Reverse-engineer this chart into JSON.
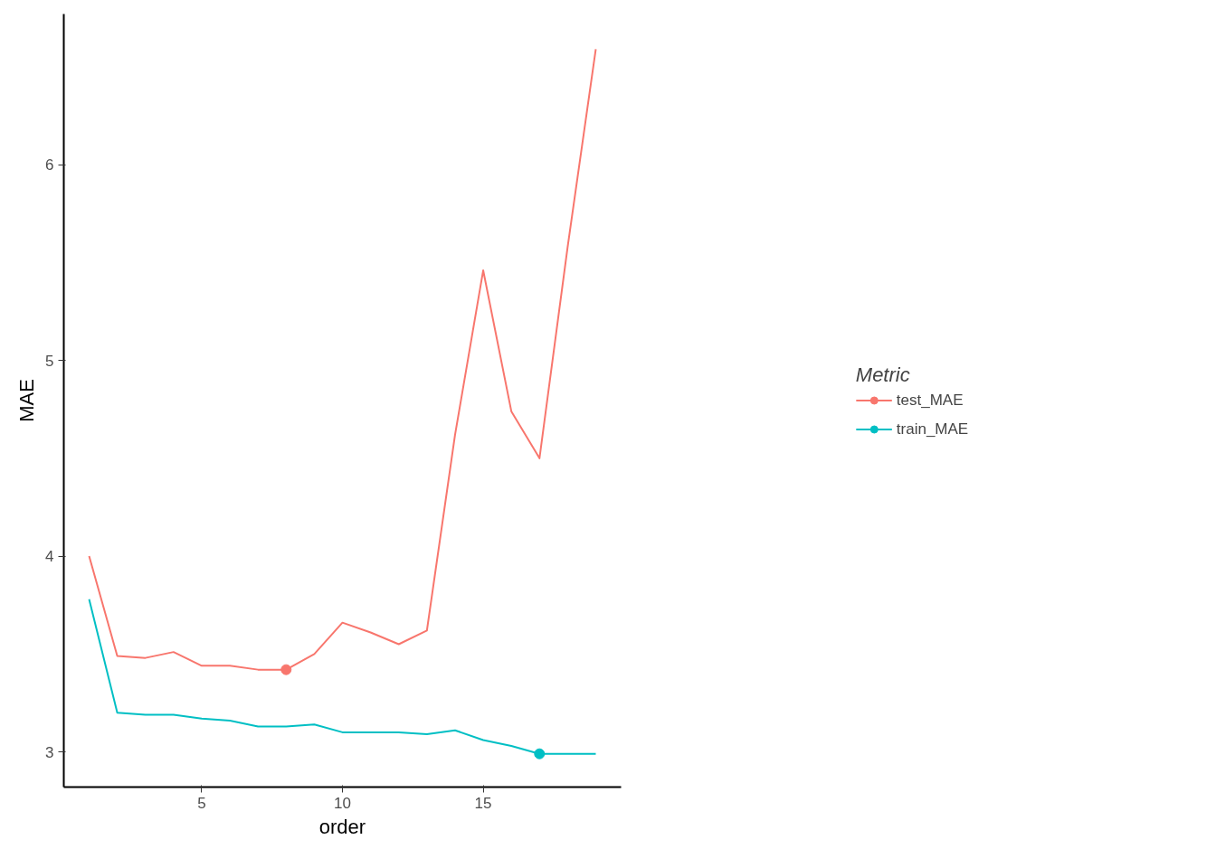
{
  "chart_data": {
    "type": "line",
    "xlabel": "order",
    "ylabel": "MAE",
    "legend_title": "Metric",
    "legend": "right",
    "grid": false,
    "x": [
      1,
      2,
      3,
      4,
      5,
      6,
      7,
      8,
      9,
      10,
      11,
      12,
      13,
      14,
      15,
      16,
      17,
      18,
      19
    ],
    "xlim": [
      0.1,
      19.9
    ],
    "xticks": [
      5,
      10,
      15
    ],
    "ylim": [
      2.82,
      6.77
    ],
    "yticks": [
      3,
      4,
      5,
      6
    ],
    "series": [
      {
        "name": "test_MAE",
        "color": "#f8766d",
        "values": [
          4.0,
          3.49,
          3.48,
          3.51,
          3.44,
          3.44,
          3.42,
          3.42,
          3.5,
          3.66,
          3.61,
          3.55,
          3.62,
          4.62,
          5.46,
          4.74,
          4.5,
          5.58,
          6.59
        ]
      },
      {
        "name": "train_MAE",
        "color": "#00bfc4",
        "values": [
          3.78,
          3.2,
          3.19,
          3.19,
          3.17,
          3.16,
          3.13,
          3.13,
          3.14,
          3.1,
          3.1,
          3.1,
          3.09,
          3.11,
          3.06,
          3.03,
          2.99,
          2.99,
          2.99
        ]
      },
      {
        "type": "scatter",
        "marker": "circle",
        "color": "#f8766d",
        "x": [
          8
        ],
        "values": [
          3.42
        ]
      },
      {
        "type": "scatter",
        "marker": "circle",
        "color": "#00bfc4",
        "x": [
          17
        ],
        "values": [
          2.99
        ]
      }
    ]
  }
}
